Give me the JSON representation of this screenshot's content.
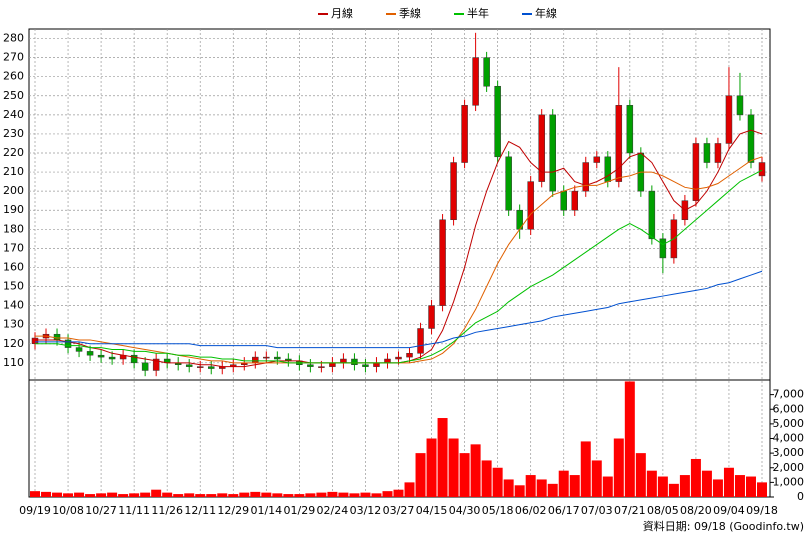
{
  "chart_data": {
    "type": "candlestick",
    "categories": [
      "09/19",
      null,
      null,
      "10/08",
      null,
      null,
      "10/27",
      null,
      null,
      "11/11",
      null,
      null,
      "11/26",
      null,
      null,
      "12/11",
      null,
      null,
      "12/29",
      null,
      null,
      "01/14",
      null,
      null,
      "01/29",
      null,
      null,
      "02/24",
      null,
      null,
      "03/12",
      null,
      null,
      "03/27",
      null,
      null,
      "04/15",
      null,
      null,
      "04/30",
      null,
      null,
      "05/18",
      null,
      null,
      "06/02",
      null,
      null,
      "06/17",
      null,
      null,
      "07/03",
      null,
      null,
      "07/21",
      null,
      null,
      "08/05",
      null,
      null,
      "08/20",
      null,
      null,
      "09/04",
      null,
      null,
      "09/18"
    ],
    "open": [
      120,
      123,
      125,
      122,
      118,
      116,
      114,
      113,
      112,
      114,
      110,
      106,
      112,
      110,
      109,
      108,
      108,
      107,
      108,
      109,
      110,
      113,
      113,
      112,
      111,
      109,
      108,
      108,
      110,
      112,
      109,
      108,
      110,
      112,
      113,
      115,
      128,
      140,
      185,
      215,
      245,
      270,
      255,
      218,
      190,
      180,
      205,
      240,
      200,
      190,
      200,
      215,
      218,
      205,
      245,
      220,
      200,
      175,
      165,
      185,
      195,
      225,
      215,
      225,
      250,
      240,
      208
    ],
    "high": [
      126,
      128,
      128,
      125,
      121,
      119,
      117,
      116,
      117,
      117,
      113,
      115,
      115,
      113,
      112,
      111,
      111,
      111,
      112,
      113,
      116,
      116,
      116,
      115,
      114,
      112,
      111,
      113,
      115,
      115,
      112,
      113,
      115,
      116,
      118,
      131,
      143,
      188,
      218,
      248,
      283,
      273,
      258,
      221,
      193,
      208,
      243,
      243,
      203,
      203,
      218,
      221,
      221,
      265,
      248,
      223,
      203,
      178,
      188,
      198,
      228,
      228,
      228,
      265,
      262,
      243,
      218
    ],
    "low": [
      117,
      120,
      119,
      115,
      113,
      111,
      110,
      109,
      109,
      107,
      103,
      103,
      107,
      106,
      105,
      105,
      104,
      104,
      105,
      106,
      107,
      110,
      109,
      108,
      106,
      105,
      105,
      105,
      107,
      106,
      105,
      105,
      107,
      109,
      110,
      112,
      125,
      137,
      182,
      212,
      242,
      252,
      215,
      187,
      175,
      177,
      202,
      197,
      187,
      187,
      197,
      212,
      202,
      202,
      217,
      197,
      172,
      157,
      162,
      182,
      192,
      212,
      212,
      222,
      237,
      212,
      205
    ],
    "close": [
      123,
      125,
      122,
      118,
      116,
      114,
      113,
      112,
      114,
      110,
      106,
      112,
      110,
      109,
      108,
      108,
      107,
      108,
      109,
      110,
      113,
      113,
      112,
      111,
      109,
      108,
      108,
      110,
      112,
      109,
      108,
      110,
      112,
      113,
      115,
      128,
      140,
      185,
      215,
      245,
      270,
      255,
      218,
      190,
      180,
      205,
      240,
      200,
      190,
      200,
      215,
      218,
      205,
      245,
      220,
      200,
      175,
      165,
      185,
      195,
      225,
      215,
      225,
      250,
      240,
      215,
      215
    ],
    "up_color": "#e00000",
    "down_color": "#00a000",
    "volume": [
      400,
      350,
      300,
      250,
      300,
      200,
      250,
      300,
      200,
      250,
      300,
      500,
      300,
      200,
      250,
      200,
      200,
      250,
      200,
      300,
      350,
      300,
      250,
      200,
      200,
      250,
      300,
      350,
      300,
      250,
      300,
      250,
      400,
      500,
      1000,
      3000,
      4000,
      5400,
      4000,
      3000,
      3600,
      2500,
      2000,
      1200,
      800,
      1500,
      1200,
      900,
      1800,
      1500,
      3800,
      2500,
      1400,
      4000,
      7900,
      3000,
      1800,
      1400,
      900,
      1500,
      2600,
      1800,
      1200,
      2000,
      1500,
      1400,
      1000
    ],
    "volume_color": "#ff0000",
    "series": [
      {
        "name": "月線",
        "color": "#c00000",
        "values": [
          122,
          122,
          122,
          121,
          120,
          118,
          117,
          115,
          114,
          113,
          112,
          111,
          110,
          110,
          110,
          109,
          109,
          108,
          108,
          108,
          109,
          110,
          111,
          111,
          111,
          110,
          110,
          110,
          110,
          110,
          110,
          110,
          110,
          110,
          111,
          113,
          117,
          127,
          142,
          160,
          182,
          200,
          215,
          226,
          223,
          215,
          210,
          210,
          212,
          205,
          203,
          205,
          208,
          212,
          218,
          220,
          215,
          205,
          195,
          190,
          193,
          200,
          210,
          222,
          230,
          232,
          230
        ]
      },
      {
        "name": "季線",
        "color": "#e06000",
        "values": [
          124,
          124,
          123,
          123,
          122,
          122,
          121,
          120,
          119,
          118,
          117,
          116,
          115,
          114,
          113,
          112,
          111,
          111,
          110,
          110,
          110,
          110,
          110,
          110,
          110,
          110,
          110,
          110,
          110,
          110,
          110,
          110,
          110,
          110,
          110,
          111,
          112,
          115,
          120,
          128,
          138,
          150,
          162,
          172,
          180,
          188,
          193,
          198,
          200,
          202,
          203,
          203,
          205,
          207,
          208,
          210,
          210,
          208,
          205,
          202,
          201,
          202,
          204,
          208,
          212,
          216,
          218
        ]
      },
      {
        "name": "半年",
        "color": "#00c000",
        "values": [
          120,
          120,
          120,
          119,
          119,
          118,
          118,
          117,
          117,
          116,
          116,
          115,
          115,
          114,
          114,
          113,
          113,
          112,
          112,
          111,
          111,
          111,
          111,
          110,
          110,
          110,
          110,
          110,
          110,
          110,
          110,
          110,
          110,
          110,
          111,
          112,
          114,
          117,
          121,
          126,
          131,
          134,
          137,
          142,
          146,
          150,
          153,
          156,
          160,
          164,
          168,
          172,
          176,
          180,
          183,
          180,
          176,
          172,
          175,
          180,
          185,
          190,
          195,
          200,
          205,
          208,
          211
        ]
      },
      {
        "name": "年線",
        "color": "#0050d0",
        "values": [
          121,
          121,
          121,
          121,
          121,
          120,
          120,
          120,
          120,
          120,
          120,
          120,
          120,
          120,
          120,
          119,
          119,
          119,
          119,
          119,
          119,
          119,
          118,
          118,
          118,
          118,
          118,
          118,
          118,
          118,
          118,
          118,
          118,
          118,
          118,
          119,
          120,
          121,
          123,
          124,
          126,
          127,
          128,
          129,
          130,
          131,
          132,
          134,
          135,
          136,
          137,
          138,
          139,
          141,
          142,
          143,
          144,
          145,
          146,
          147,
          148,
          149,
          151,
          152,
          154,
          156,
          158
        ]
      }
    ],
    "ylim": [
      101,
      285
    ],
    "yticks": [
      110,
      120,
      130,
      140,
      150,
      160,
      170,
      180,
      190,
      200,
      210,
      220,
      230,
      240,
      250,
      260,
      270,
      280
    ],
    "volume_ylim": [
      0,
      8000
    ],
    "volume_yticks": [
      0,
      {
        "value": 1000,
        "label": "1,000"
      },
      {
        "value": 2000,
        "label": "2,000"
      },
      {
        "value": 3000,
        "label": "3,000"
      },
      {
        "value": 4000,
        "label": "4,000"
      },
      {
        "value": 5000,
        "label": "5,000"
      },
      {
        "value": 6000,
        "label": "6,000"
      },
      {
        "value": 7000,
        "label": "7,000"
      }
    ],
    "grid": true,
    "footer": "資料日期: 09/18  (Goodinfo.tw)"
  }
}
